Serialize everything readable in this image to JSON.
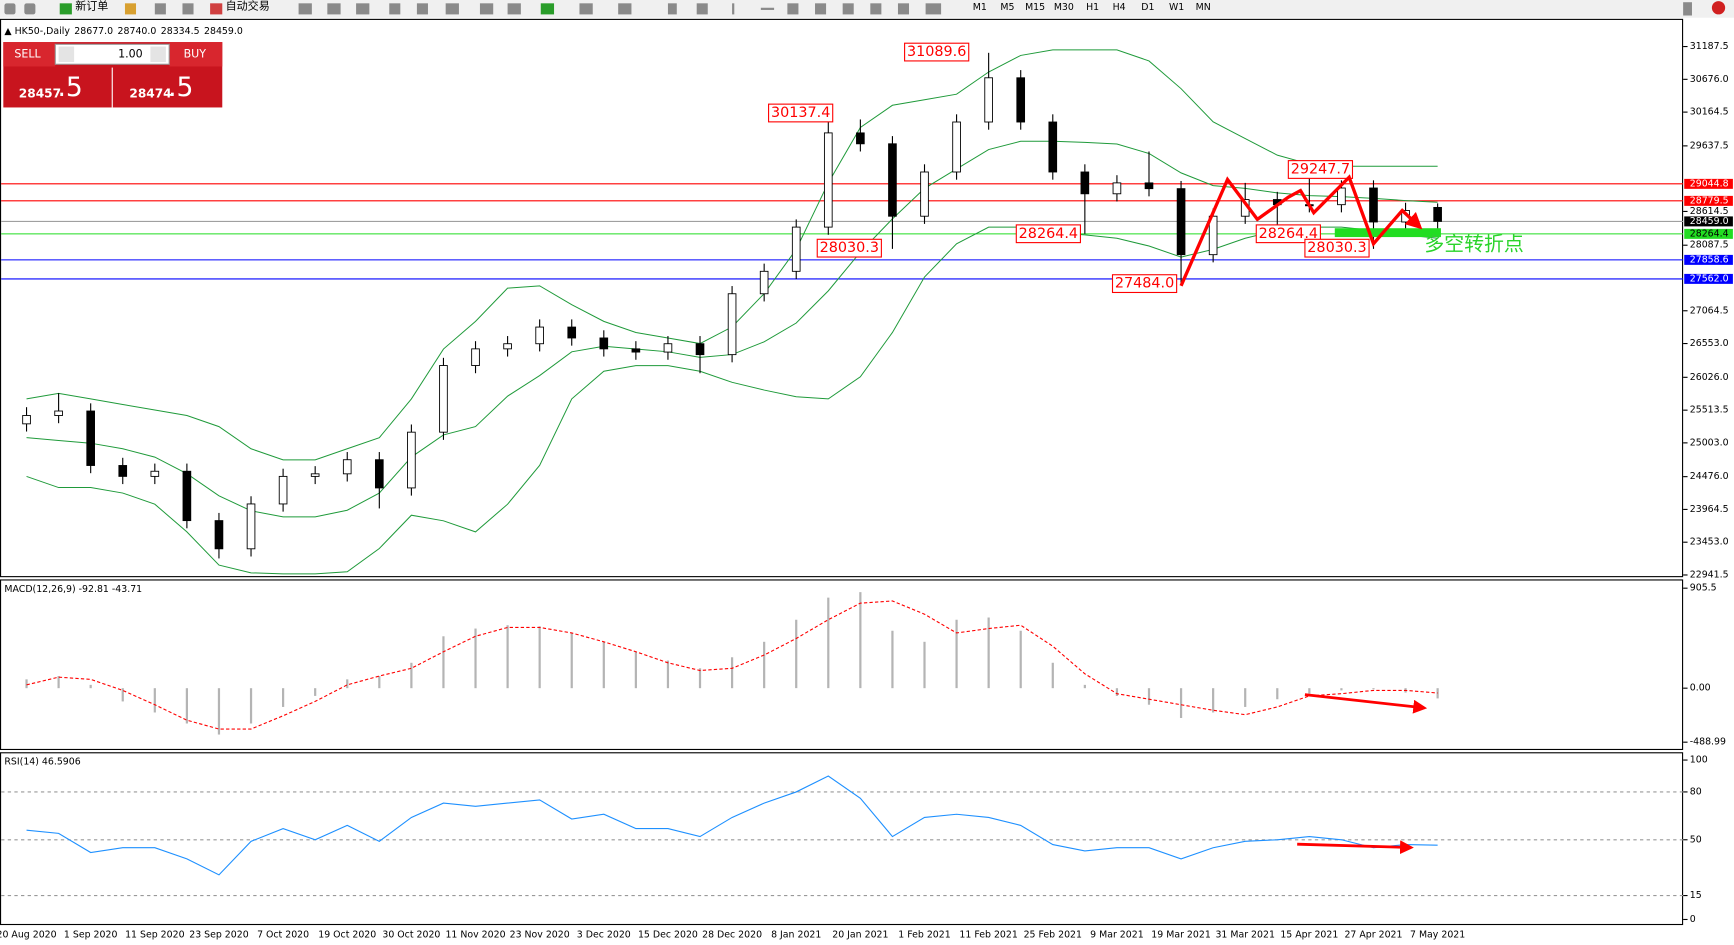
{
  "toolbar": {
    "new_order": "新订单",
    "auto_trading": "自动交易",
    "timeframes": [
      "M1",
      "M5",
      "M15",
      "M30",
      "H1",
      "H4",
      "D1",
      "W1",
      "MN"
    ]
  },
  "trade_panel": {
    "sell": "SELL",
    "buy": "BUY",
    "volume": "1.00",
    "bid_main": "28457",
    "bid_frac": ".5",
    "ask_main": "28474",
    "ask_frac": ".5"
  },
  "chart_data": [
    {
      "type": "candlestick",
      "symbol": "HK50-,Daily",
      "ohlc_header": [
        "28677.0",
        "28740.0",
        "28334.5",
        "28459.0"
      ],
      "x": [
        "20 Aug 2020",
        null,
        "1 Sep 2020",
        null,
        "11 Sep 2020",
        null,
        "23 Sep 2020",
        null,
        "7 Oct 2020",
        null,
        "19 Oct 2020",
        null,
        "30 Oct 2020",
        null,
        "11 Nov 2020",
        null,
        "23 Nov 2020",
        null,
        "3 Dec 2020",
        null,
        "15 Dec 2020",
        null,
        "28 Dec 2020",
        null,
        "8 Jan 2021",
        null,
        "20 Jan 2021",
        null,
        "1 Feb 2021",
        null,
        "11 Feb 2021",
        null,
        "25 Feb 2021",
        null,
        "9 Mar 2021",
        null,
        "19 Mar 2021",
        null,
        "31 Mar 2021",
        null,
        "15 Apr 2021",
        null,
        "27 Apr 2021",
        null,
        "7 May 2021"
      ],
      "candles": [
        [
          25300,
          25560,
          25180,
          25430
        ],
        [
          25430,
          25780,
          25310,
          25500
        ],
        [
          25500,
          25620,
          24530,
          24650
        ],
        [
          24650,
          24770,
          24360,
          24480
        ],
        [
          24480,
          24680,
          24360,
          24560
        ],
        [
          24560,
          24680,
          23670,
          23790
        ],
        [
          23790,
          23910,
          23200,
          23350
        ],
        [
          23350,
          24170,
          23230,
          24050
        ],
        [
          24050,
          24600,
          23930,
          24480
        ],
        [
          24480,
          24640,
          24360,
          24520
        ],
        [
          24520,
          24860,
          24400,
          24740
        ],
        [
          24740,
          24860,
          23980,
          24300
        ],
        [
          24300,
          25290,
          24180,
          25170
        ],
        [
          25170,
          26330,
          25050,
          26210
        ],
        [
          26210,
          26590,
          26090,
          26470
        ],
        [
          26470,
          26670,
          26350,
          26550
        ],
        [
          26550,
          26930,
          26430,
          26810
        ],
        [
          26810,
          26930,
          26520,
          26640
        ],
        [
          26640,
          26760,
          26350,
          26470
        ],
        [
          26470,
          26590,
          26300,
          26420
        ],
        [
          26420,
          26670,
          26300,
          26550
        ],
        [
          26550,
          26670,
          26090,
          26380
        ],
        [
          26380,
          27450,
          26260,
          27330
        ],
        [
          27330,
          27800,
          27210,
          27680
        ],
        [
          27680,
          28490,
          27560,
          28370
        ],
        [
          28370,
          30137.4,
          28250,
          29840
        ],
        [
          29840,
          30050,
          29550,
          29670
        ],
        [
          29670,
          29790,
          28030.3,
          28540
        ],
        [
          28540,
          29350,
          28420,
          29230
        ],
        [
          29230,
          30130,
          29110,
          30010
        ],
        [
          30010,
          31089.6,
          29890,
          30700
        ],
        [
          30700,
          30820,
          29890,
          30010
        ],
        [
          30010,
          30130,
          29110,
          29230
        ],
        [
          29230,
          29350,
          28264.4,
          28890
        ],
        [
          28890,
          29180,
          28770,
          29060
        ],
        [
          29060,
          29550,
          28850,
          28970
        ],
        [
          28970,
          29090,
          27484.0,
          27940
        ],
        [
          27940,
          28660,
          27820,
          28540
        ],
        [
          28540,
          29060,
          28420,
          28800
        ],
        [
          28800,
          28920,
          28264.4,
          28720
        ],
        [
          28720,
          29247.7,
          28600,
          28720
        ],
        [
          28720,
          29100,
          28600,
          28980
        ],
        [
          28980,
          29100,
          28030.3,
          28450
        ],
        [
          28450,
          28750,
          28330,
          28630
        ],
        [
          28677.0,
          28740.0,
          28334.5,
          28459.0
        ]
      ],
      "ylim": [
        22907,
        31620
      ],
      "yticks": [
        31187.5,
        {
          "value": 30676.0,
          "label": "30676.0"
        },
        30164.5,
        29637.5,
        28614.5,
        28087.5,
        27064.5,
        {
          "value": 26553.0,
          "label": "26553.0"
        },
        {
          "value": 26026.0,
          "label": "26026.0"
        },
        25513.5,
        {
          "value": 25003.0,
          "label": "25003.0"
        },
        {
          "value": 24476.0,
          "label": "24476.0"
        },
        23964.5,
        {
          "value": 23453.0,
          "label": "23453.0"
        },
        22941.5
      ],
      "price_lines": [
        {
          "value": 29044.8,
          "color": "#ff0000"
        },
        {
          "value": 28779.5,
          "color": "#ff0000"
        },
        {
          "value": 28459.0,
          "label": "28459.0",
          "color": "#000000"
        },
        {
          "value": 28264.4,
          "color": "#22dd22"
        },
        {
          "value": 27858.6,
          "color": "#0000ff"
        },
        {
          "value": 27562.0,
          "label": "27562.0",
          "color": "#0000ff"
        }
      ],
      "bands": {
        "color": "#1f9a3a",
        "upper": [
          25689,
          25775,
          25689,
          25602,
          25516,
          25430,
          25257,
          24911,
          24738,
          24738,
          24911,
          25084,
          25689,
          26467,
          26899,
          27418,
          27453,
          27159,
          26899,
          26726,
          26640,
          26553,
          26813,
          27332,
          28023,
          29061,
          29925,
          30271,
          30357,
          30444,
          30790,
          31049,
          31136,
          31136,
          31136,
          30963,
          30530,
          30012,
          29752,
          29493,
          29354,
          29320,
          29320,
          29320,
          29320
        ],
        "middle": [
          25084,
          25040,
          24998,
          24911,
          24781,
          24522,
          24177,
          23943,
          23848,
          23848,
          23952,
          24220,
          24782,
          25127,
          25257,
          25732,
          26053,
          26424,
          26510,
          26467,
          26424,
          26337,
          26381,
          26580,
          26873,
          27375,
          27980,
          28499,
          28974,
          29277,
          29580,
          29709,
          29710,
          29692,
          29666,
          29519,
          29216,
          29018,
          28974,
          28905,
          28862,
          28845,
          28819,
          28784,
          28758
        ],
        "lower": [
          24479,
          24306,
          24306,
          24220,
          24046,
          23614,
          23096,
          22975,
          22958,
          22958,
          22992,
          23355,
          23874,
          23787,
          23614,
          24046,
          24652,
          25689,
          26121,
          26208,
          26208,
          26121,
          25948,
          25827,
          25723,
          25689,
          26035,
          26726,
          27591,
          28110,
          28369,
          28369,
          28283,
          28248,
          28196,
          28075,
          27902,
          28023,
          28196,
          28317,
          28369,
          28369,
          28317,
          28248,
          28196
        ]
      },
      "annotations": [
        "31089.6",
        "30137.4",
        "28030.3",
        "28264.4",
        "27484.0",
        "29247.7",
        "28264.4",
        "28030.3"
      ],
      "signal_text": "多空转折点"
    },
    {
      "type": "macd",
      "title": "MACD(12,26,9) -92.81 -43.71",
      "histogram": [
        80,
        110,
        30,
        -120,
        -220,
        -320,
        -420,
        -320,
        -170,
        -70,
        80,
        110,
        230,
        470,
        540,
        570,
        560,
        500,
        420,
        330,
        250,
        180,
        280,
        420,
        620,
        820,
        870,
        520,
        420,
        620,
        640,
        520,
        230,
        30,
        -70,
        -150,
        -270,
        -220,
        -170,
        -100,
        -50,
        -20,
        -10,
        -40,
        -92.81
      ],
      "signal": [
        30,
        100,
        80,
        -20,
        -150,
        -290,
        -370,
        -370,
        -250,
        -120,
        30,
        110,
        180,
        330,
        470,
        550,
        550,
        500,
        420,
        330,
        230,
        160,
        180,
        300,
        450,
        620,
        770,
        790,
        670,
        500,
        540,
        570,
        380,
        130,
        -50,
        -100,
        -150,
        -200,
        -240,
        -170,
        -70,
        -50,
        -20,
        -20,
        -43.71
      ],
      "hist_color": "#b4b4b4",
      "signal_color": "#ff0000",
      "ylim": [
        -560,
        985
      ],
      "yticks": [
        905.5,
        {
          "value": 0,
          "label": "0.00"
        },
        -488.99
      ]
    },
    {
      "type": "line",
      "title": "RSI(14) 46.5906",
      "values": [
        56,
        54,
        42,
        45,
        45,
        38,
        28,
        49,
        57,
        50,
        59,
        49,
        64,
        73,
        71,
        73,
        75,
        63,
        66,
        57,
        57,
        52,
        64,
        73,
        80,
        90,
        76,
        52,
        64,
        66,
        64,
        59,
        47,
        43,
        45,
        45,
        38,
        45,
        49,
        50,
        52,
        50,
        45,
        47,
        46.5906
      ],
      "color": "#1e90ff",
      "ylim": [
        -3.5,
        104.9
      ],
      "yticks": [
        100,
        80,
        50,
        15,
        0
      ],
      "levels": [
        80,
        50,
        15
      ]
    }
  ]
}
